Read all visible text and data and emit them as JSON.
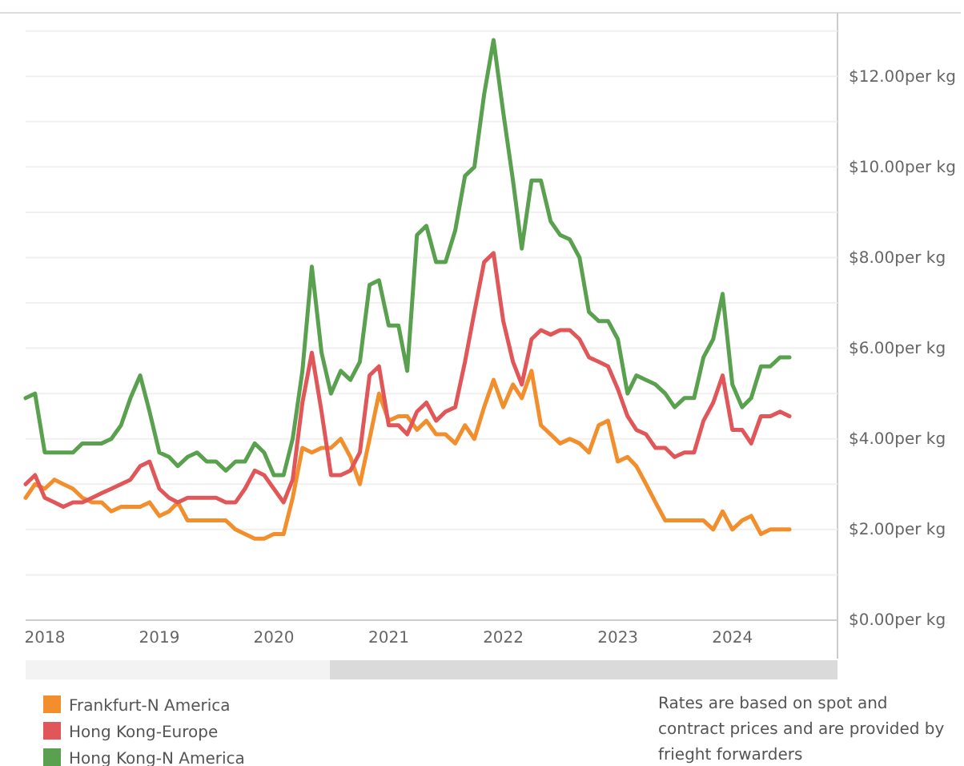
{
  "chart_data": {
    "type": "line",
    "x": [
      "2017-11",
      "2017-12",
      "2018-01",
      "2018-02",
      "2018-03",
      "2018-04",
      "2018-05",
      "2018-06",
      "2018-07",
      "2018-08",
      "2018-09",
      "2018-10",
      "2018-11",
      "2018-12",
      "2019-01",
      "2019-02",
      "2019-03",
      "2019-04",
      "2019-05",
      "2019-06",
      "2019-07",
      "2019-08",
      "2019-09",
      "2019-10",
      "2019-11",
      "2019-12",
      "2020-01",
      "2020-02",
      "2020-03",
      "2020-04",
      "2020-05",
      "2020-06",
      "2020-07",
      "2020-08",
      "2020-09",
      "2020-10",
      "2020-11",
      "2020-12",
      "2021-01",
      "2021-02",
      "2021-03",
      "2021-04",
      "2021-05",
      "2021-06",
      "2021-07",
      "2021-08",
      "2021-09",
      "2021-10",
      "2021-11",
      "2021-12",
      "2022-01",
      "2022-02",
      "2022-03",
      "2022-04",
      "2022-05",
      "2022-06",
      "2022-07",
      "2022-08",
      "2022-09",
      "2022-10",
      "2022-11",
      "2022-12",
      "2023-01",
      "2023-02",
      "2023-03",
      "2023-04",
      "2023-05",
      "2023-06",
      "2023-07",
      "2023-08",
      "2023-09",
      "2023-10",
      "2023-11",
      "2023-12",
      "2024-01",
      "2024-02",
      "2024-03",
      "2024-04",
      "2024-05",
      "2024-06",
      "2024-07"
    ],
    "series": [
      {
        "name": "Frankfurt-N America",
        "color": "#f28e2b",
        "values": [
          2.7,
          3.0,
          2.9,
          3.1,
          3.0,
          2.9,
          2.7,
          2.6,
          2.6,
          2.4,
          2.5,
          2.5,
          2.5,
          2.6,
          2.3,
          2.4,
          2.6,
          2.2,
          2.2,
          2.2,
          2.2,
          2.2,
          2.0,
          1.9,
          1.8,
          1.8,
          1.9,
          1.9,
          2.7,
          3.8,
          3.7,
          3.8,
          3.8,
          4.0,
          3.6,
          3.0,
          4.0,
          5.0,
          4.4,
          4.5,
          4.5,
          4.2,
          4.4,
          4.1,
          4.1,
          3.9,
          4.3,
          4.0,
          4.7,
          5.3,
          4.7,
          5.2,
          4.9,
          5.5,
          4.3,
          4.1,
          3.9,
          4.0,
          3.9,
          3.7,
          4.3,
          4.4,
          3.5,
          3.6,
          3.4,
          3.0,
          2.6,
          2.2,
          2.2,
          2.2,
          2.2,
          2.2,
          2.0,
          2.4,
          2.0,
          2.2,
          2.3,
          1.9,
          2.0,
          2.0,
          2.0
        ]
      },
      {
        "name": "Hong Kong-Europe",
        "color": "#e15759",
        "values": [
          3.0,
          3.2,
          2.7,
          2.6,
          2.5,
          2.6,
          2.6,
          2.7,
          2.8,
          2.9,
          3.0,
          3.1,
          3.4,
          3.5,
          2.9,
          2.7,
          2.6,
          2.7,
          2.7,
          2.7,
          2.7,
          2.6,
          2.6,
          2.9,
          3.3,
          3.2,
          2.9,
          2.6,
          3.1,
          4.8,
          5.9,
          4.6,
          3.2,
          3.2,
          3.3,
          3.7,
          5.4,
          5.6,
          4.3,
          4.3,
          4.1,
          4.6,
          4.8,
          4.4,
          4.6,
          4.7,
          5.7,
          6.8,
          7.9,
          8.1,
          6.6,
          5.7,
          5.2,
          6.2,
          6.4,
          6.3,
          6.4,
          6.4,
          6.2,
          5.8,
          5.7,
          5.6,
          5.1,
          4.5,
          4.2,
          4.1,
          3.8,
          3.8,
          3.6,
          3.7,
          3.7,
          4.4,
          4.8,
          5.4,
          4.2,
          4.2,
          3.9,
          4.5,
          4.5,
          4.6,
          4.5
        ]
      },
      {
        "name": "Hong Kong-N America",
        "color": "#59a14f",
        "values": [
          4.9,
          5.0,
          3.7,
          3.7,
          3.7,
          3.7,
          3.9,
          3.9,
          3.9,
          4.0,
          4.3,
          4.9,
          5.4,
          4.6,
          3.7,
          3.6,
          3.4,
          3.6,
          3.7,
          3.5,
          3.5,
          3.3,
          3.5,
          3.5,
          3.9,
          3.7,
          3.2,
          3.2,
          4.0,
          5.5,
          7.8,
          5.9,
          5.0,
          5.5,
          5.3,
          5.7,
          7.4,
          7.5,
          6.5,
          6.5,
          5.5,
          8.5,
          8.7,
          7.9,
          7.9,
          8.6,
          9.8,
          10.0,
          11.6,
          12.8,
          11.2,
          9.7,
          8.2,
          9.7,
          9.7,
          8.8,
          8.5,
          8.4,
          8.0,
          6.8,
          6.6,
          6.6,
          6.2,
          5.0,
          5.4,
          5.3,
          5.2,
          5.0,
          4.7,
          4.9,
          4.9,
          5.8,
          6.2,
          7.2,
          5.2,
          4.7,
          4.9,
          5.6,
          5.6,
          5.8,
          5.8
        ]
      }
    ],
    "xlim": [
      "2017-11",
      "2024-12"
    ],
    "xticks": [
      "2018",
      "2019",
      "2020",
      "2021",
      "2022",
      "2023",
      "2024"
    ],
    "ylim": [
      0,
      13.4
    ],
    "yticks": [
      {
        "value": 0,
        "label": "$0.00per kg"
      },
      {
        "value": 1,
        "label": null
      },
      {
        "value": 2,
        "label": "$2.00per kg"
      },
      {
        "value": 3,
        "label": null
      },
      {
        "value": 4,
        "label": "$4.00per kg"
      },
      {
        "value": 5,
        "label": null
      },
      {
        "value": 6,
        "label": "$6.00per kg"
      },
      {
        "value": 7,
        "label": null
      },
      {
        "value": 8,
        "label": "$8.00per kg"
      },
      {
        "value": 9,
        "label": null
      },
      {
        "value": 10,
        "label": "$10.00per kg"
      },
      {
        "value": 11,
        "label": null
      },
      {
        "value": 12,
        "label": "$12.00per kg"
      },
      {
        "value": 13,
        "label": null
      }
    ],
    "grid": "y",
    "legend": "bottom left",
    "annotations": [
      "Rates are based on spot and contract prices and are provided by frieght forwarders"
    ]
  }
}
